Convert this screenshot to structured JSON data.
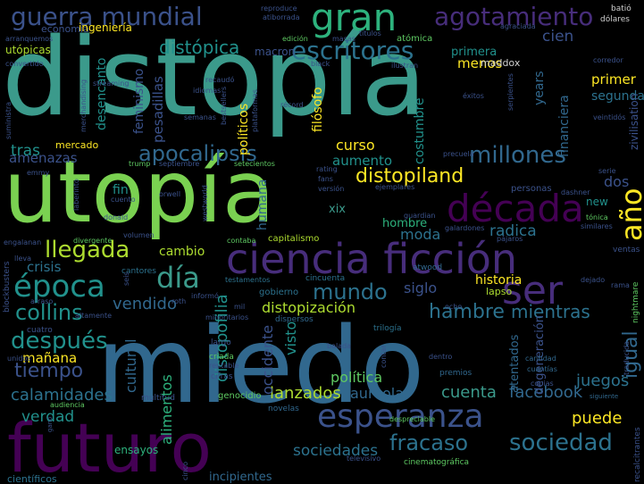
{
  "palette": {
    "background": "#000000",
    "dark_purple": "#440154",
    "purple": "#472d7b",
    "indigo": "#3b528b",
    "blue": "#2c728e",
    "teal": "#21918c",
    "green_teal": "#28ae80",
    "green": "#5ec962",
    "light_green": "#addc30",
    "yellow": "#fde725"
  },
  "words": [
    "distopía",
    "utopía",
    "miedo",
    "futuro",
    "ciencia ficción",
    "década",
    "esperanza",
    "gran",
    "guerra mundial",
    "agotamiento",
    "escritores",
    "distópica",
    "apocalipsis",
    "millones",
    "llegada",
    "época",
    "día",
    "ser",
    "distopiland",
    "año",
    "mundo",
    "sociedad",
    "fracaso",
    "después",
    "collins",
    "tiempo",
    "igual",
    "hambre",
    "mientras",
    "vendido",
    "facebook",
    "cuenta",
    "puede",
    "juegos",
    "lanzados",
    "aureola",
    "sociedades",
    "política",
    "calamidades",
    "verdad",
    "mañana",
    "distopofilia",
    "distopización",
    "occidente",
    "alimentos",
    "visto",
    "humana",
    "cambio",
    "moda",
    "radica",
    "siglo",
    "historia",
    "cultural",
    "crisis",
    "amenazas",
    "tras",
    "mercado",
    "curso",
    "aumento",
    "costumbre",
    "políticos",
    "feminismo",
    "pesadillas",
    "desencanto",
    "filósofo",
    "menos",
    "primer",
    "segunda",
    "cien",
    "dos",
    "financiera",
    "years",
    "zivilisation",
    "maddox",
    "utópicas",
    "economía",
    "ingeniería",
    "macron",
    "primera",
    "hombre",
    "xix",
    "fin",
    "new",
    "atentados",
    "degeneración",
    "después",
    "ensayos",
    "científicos",
    "incipientes",
    "genocidio",
    "multitud",
    "novelas",
    "cinematográfica",
    "televisivo",
    "dentro",
    "premios",
    "cantidad",
    "cuantías",
    "copias",
    "siguiente",
    "trilogía",
    "dispersos",
    "minoritarios",
    "mil",
    "gobierno",
    "cincuenta",
    "testamentos",
    "atwood",
    "lapso",
    "cantores",
    "blockbusters",
    "contaba",
    "capitalismo",
    "divergente",
    "volumen",
    "ventas",
    "tónica",
    "similares",
    "pájaros",
    "galardones",
    "guardian",
    "ejemplares",
    "personas",
    "dashner",
    "precuela",
    "rating",
    "fans",
    "versión",
    "orwell",
    "trump",
    "septiembre",
    "setecientos",
    "emmy",
    "serie",
    "nightmare",
    "dejado",
    "despreciable",
    "contar",
    "balada",
    "criada",
    "cifras",
    "largo",
    "roth",
    "informó",
    "altamente",
    "arraso",
    "cuatro",
    "unidos",
    "audiencia",
    "ganó",
    "cinco",
    "recalcitrantes",
    "dólares",
    "batió",
    "agraciada",
    "atómica",
    "reproduce",
    "atiborrada",
    "edición",
    "masas",
    "títulos",
    "streaming",
    "merchandising",
    "arranquemos",
    "convertido",
    "suministra",
    "recaudó",
    "idiomas",
    "semanas",
    "bestsellers",
    "plataformas",
    "récord",
    "black",
    "ilustran",
    "éxitos",
    "serpientes",
    "corredor",
    "veintidós",
    "laberinto",
    "cuento",
    "donald",
    "westworld",
    "lleva",
    "engalanan",
    "rentable",
    "seis",
    "traducida",
    "ocho",
    "rama",
    "mil"
  ]
}
